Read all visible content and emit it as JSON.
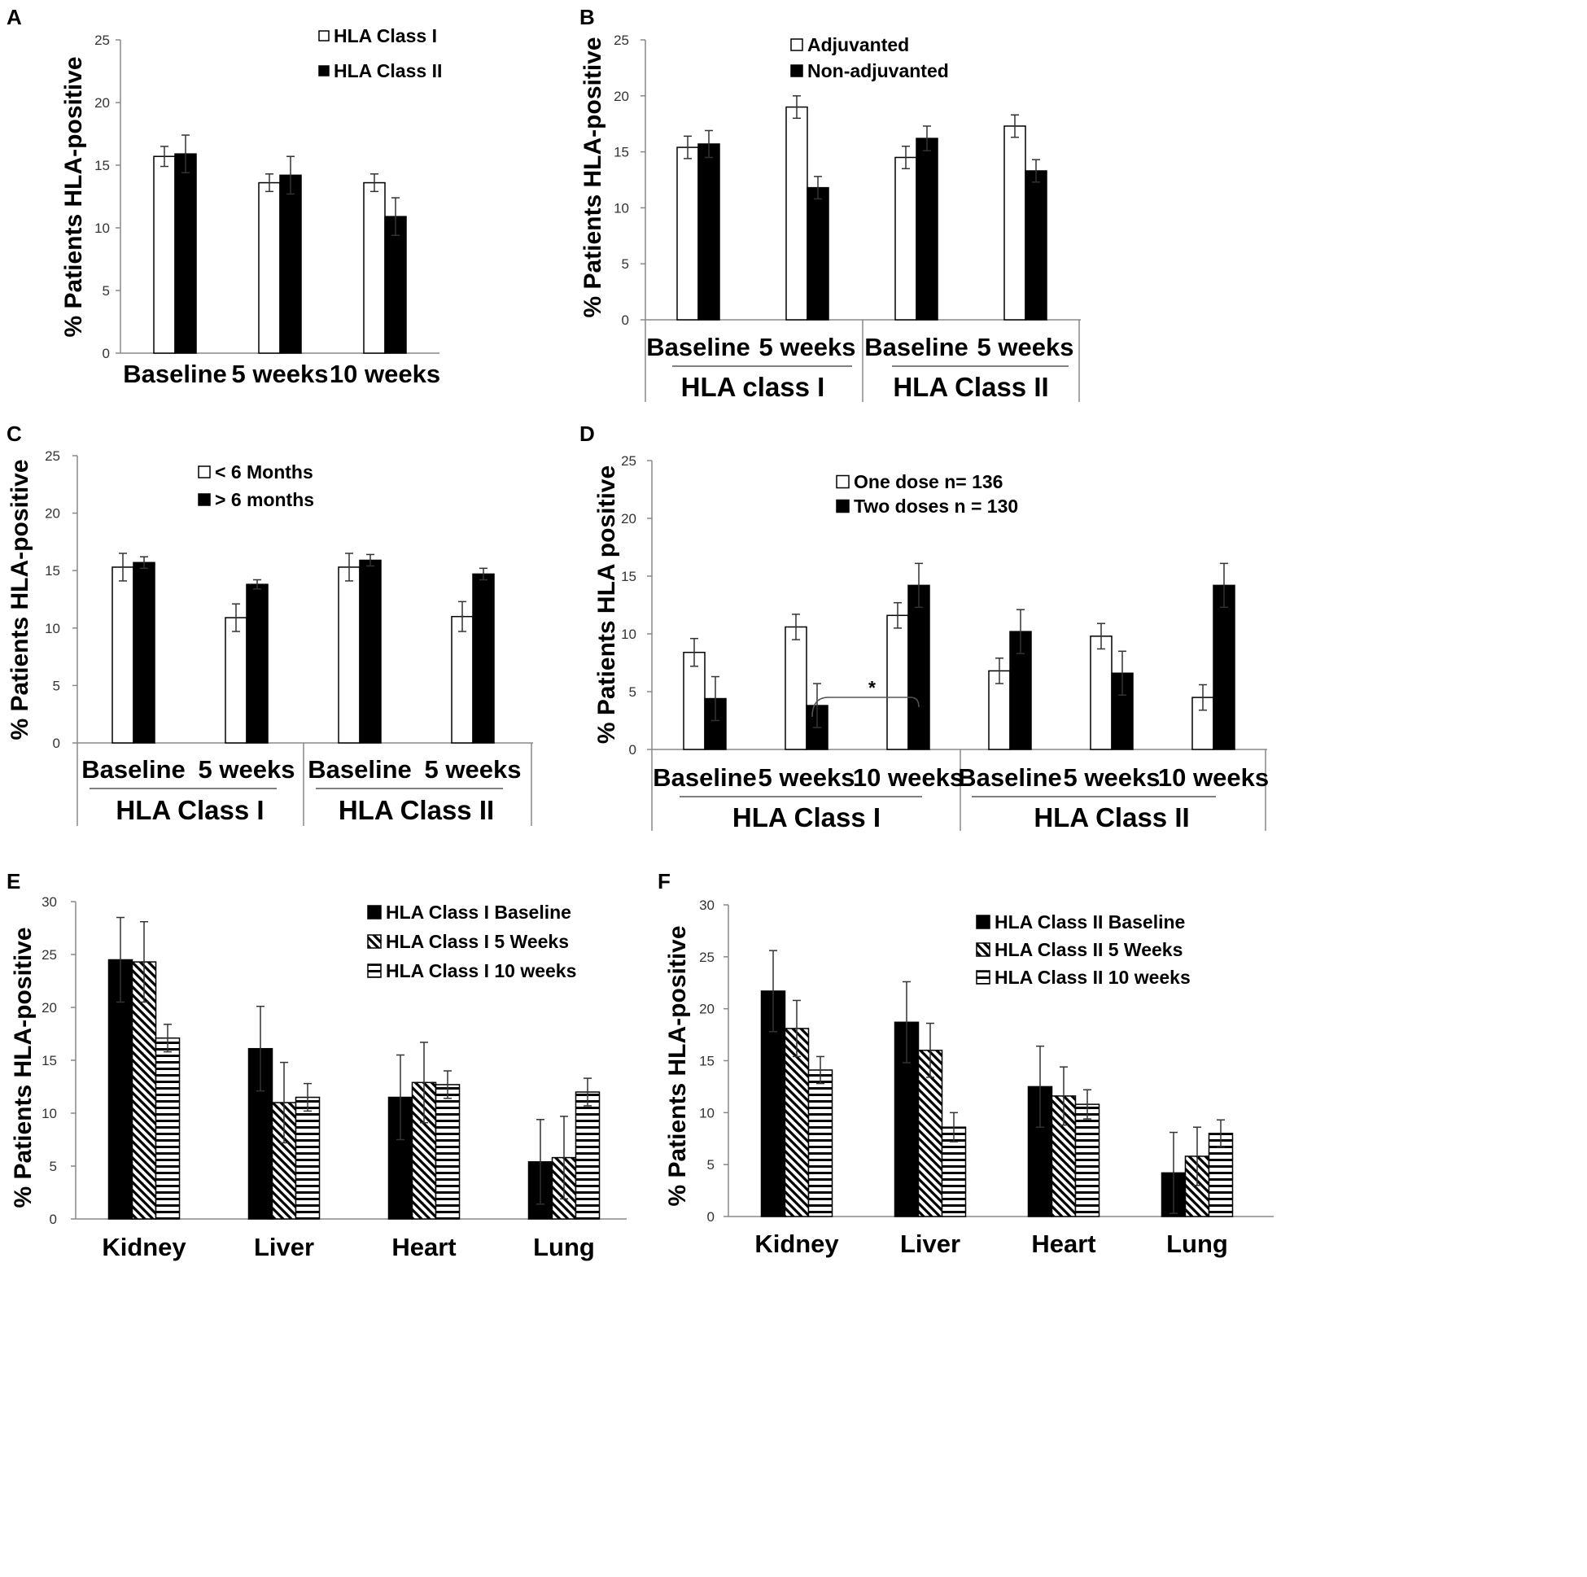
{
  "figure": {
    "panels": [
      "A",
      "B",
      "C",
      "D",
      "E",
      "F"
    ]
  },
  "chart_data": [
    {
      "panel": "A",
      "type": "bar",
      "ylabel": "% Patients HLA-positive",
      "ylim": [
        0,
        25
      ],
      "yticks": [
        0,
        5,
        10,
        15,
        20,
        25
      ],
      "categories": [
        "Baseline",
        "5 weeks",
        "10 weeks"
      ],
      "series": [
        {
          "name": "HLA Class I",
          "fill": "white",
          "values": [
            15.7,
            13.6,
            13.6
          ],
          "errors": [
            0.8,
            0.7,
            0.7
          ]
        },
        {
          "name": "HLA Class II",
          "fill": "black",
          "values": [
            15.9,
            14.2,
            10.9
          ],
          "errors": [
            1.5,
            1.5,
            1.5
          ]
        }
      ]
    },
    {
      "panel": "B",
      "type": "bar",
      "ylabel": "% Patients HLA-positive",
      "ylim": [
        0,
        25
      ],
      "yticks": [
        0,
        5,
        10,
        15,
        20,
        25
      ],
      "categories": [
        "Baseline",
        "5 weeks",
        "Baseline",
        "5 weeks"
      ],
      "groups": [
        {
          "label": "HLA class I",
          "span": [
            0,
            1
          ]
        },
        {
          "label": "HLA Class II",
          "span": [
            2,
            3
          ]
        }
      ],
      "series": [
        {
          "name": "Adjuvanted",
          "fill": "white",
          "values": [
            15.4,
            19.0,
            14.5,
            17.3
          ],
          "errors": [
            1.0,
            1.0,
            1.0,
            1.0
          ]
        },
        {
          "name": "Non-adjuvanted",
          "fill": "black",
          "values": [
            15.7,
            11.8,
            16.2,
            13.3
          ],
          "errors": [
            1.2,
            1.0,
            1.1,
            1.0
          ]
        }
      ]
    },
    {
      "panel": "C",
      "type": "bar",
      "ylabel": "% Patients  HLA-positive",
      "ylim": [
        0,
        25
      ],
      "yticks": [
        0,
        5,
        10,
        15,
        20,
        25
      ],
      "categories": [
        "Baseline",
        "5 weeks",
        "Baseline",
        "5 weeks"
      ],
      "groups": [
        {
          "label": "HLA Class I",
          "span": [
            0,
            1
          ]
        },
        {
          "label": "HLA Class II",
          "span": [
            2,
            3
          ]
        }
      ],
      "series": [
        {
          "name": "< 6 Months",
          "fill": "white",
          "values": [
            15.3,
            10.9,
            15.3,
            11.0
          ],
          "errors": [
            1.2,
            1.2,
            1.2,
            1.3
          ]
        },
        {
          "name": "> 6 months",
          "fill": "black",
          "values": [
            15.7,
            13.8,
            15.9,
            14.7
          ],
          "errors": [
            0.5,
            0.4,
            0.5,
            0.5
          ]
        }
      ]
    },
    {
      "panel": "D",
      "type": "bar",
      "ylabel": "% Patients HLA positive",
      "ylim": [
        0,
        25
      ],
      "yticks": [
        0,
        5,
        10,
        15,
        20,
        25
      ],
      "categories": [
        "Baseline",
        "5 weeks",
        "10 weeks",
        "Baseline",
        "5 weeks",
        "10 weeks"
      ],
      "groups": [
        {
          "label": "HLA Class I",
          "span": [
            0,
            2
          ]
        },
        {
          "label": "HLA Class II",
          "span": [
            3,
            5
          ]
        }
      ],
      "series": [
        {
          "name": "One dose  n=  136",
          "fill": "white",
          "values": [
            8.4,
            10.6,
            11.6,
            6.8,
            9.8,
            4.5
          ],
          "errors": [
            1.2,
            1.1,
            1.1,
            1.1,
            1.1,
            1.1
          ]
        },
        {
          "name": "Two doses  n = 130",
          "fill": "black",
          "values": [
            4.4,
            3.8,
            14.2,
            10.2,
            6.6,
            14.2
          ],
          "errors": [
            1.9,
            1.9,
            1.9,
            1.9,
            1.9,
            1.9
          ]
        }
      ],
      "annotation": {
        "text": "*",
        "from": [
          1,
          0
        ],
        "to": [
          2,
          1
        ]
      }
    },
    {
      "panel": "E",
      "type": "bar",
      "ylabel": "% Patients  HLA-positive",
      "ylim": [
        0,
        30
      ],
      "yticks": [
        0,
        5,
        10,
        15,
        20,
        25,
        30
      ],
      "categories": [
        "Kidney",
        "Liver",
        "Heart",
        "Lung"
      ],
      "series": [
        {
          "name": "HLA Class I Baseline",
          "fill": "solid",
          "values": [
            24.5,
            16.1,
            11.5,
            5.4
          ],
          "errors": [
            4.0,
            4.0,
            4.0,
            4.0
          ]
        },
        {
          "name": "HLA Class I 5 Weeks",
          "fill": "diagonal",
          "values": [
            24.3,
            11.0,
            12.9,
            5.8
          ],
          "errors": [
            3.8,
            3.8,
            3.8,
            3.9
          ]
        },
        {
          "name": "HLA Class I 10 weeks",
          "fill": "horizontal",
          "values": [
            17.1,
            11.5,
            12.7,
            12.0
          ],
          "errors": [
            1.3,
            1.3,
            1.3,
            1.3
          ]
        }
      ]
    },
    {
      "panel": "F",
      "type": "bar",
      "ylabel": "% Patients  HLA-positive",
      "ylim": [
        0,
        30
      ],
      "yticks": [
        0,
        5,
        10,
        15,
        20,
        25,
        30
      ],
      "categories": [
        "Kidney",
        "Liver",
        "Heart",
        "Lung"
      ],
      "series": [
        {
          "name": "HLA Class II Baseline",
          "fill": "solid",
          "values": [
            21.7,
            18.7,
            12.5,
            4.2
          ],
          "errors": [
            3.9,
            3.9,
            3.9,
            3.9
          ]
        },
        {
          "name": "HLA Class II 5 Weeks",
          "fill": "diagonal",
          "values": [
            18.1,
            16.0,
            11.6,
            5.8
          ],
          "errors": [
            2.7,
            2.6,
            2.8,
            2.8
          ]
        },
        {
          "name": "HLA Class II 10 weeks",
          "fill": "horizontal",
          "values": [
            14.1,
            8.6,
            10.8,
            8.0
          ],
          "errors": [
            1.3,
            1.4,
            1.4,
            1.3
          ]
        }
      ]
    }
  ]
}
